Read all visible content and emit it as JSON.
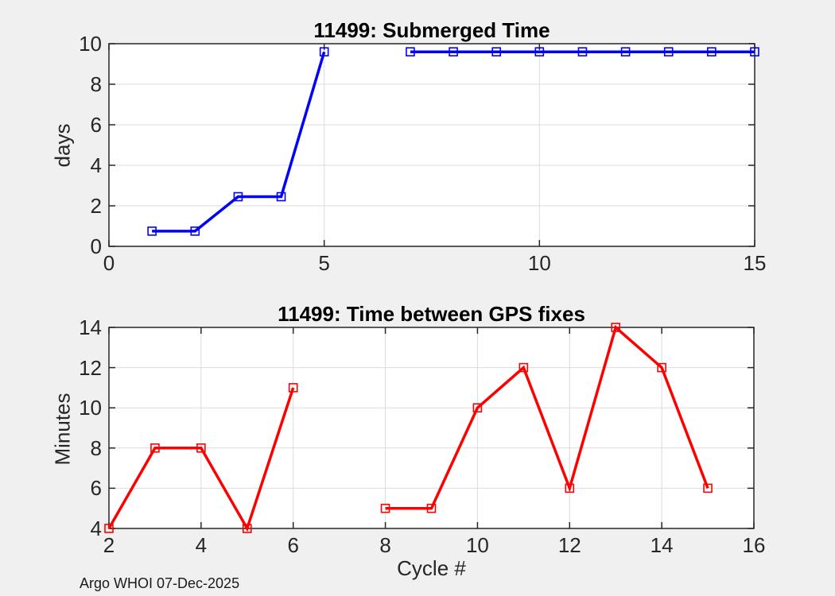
{
  "figure": {
    "background": "#F0F0F0",
    "plot_background": "#FFFFFF",
    "axis_color": "#262626",
    "grid_color": "#DBDBDB",
    "footer": "Argo WHOI 07-Dec-2025"
  },
  "chart_data": [
    {
      "type": "line",
      "title": "11499: Submerged Time",
      "ylabel": "days",
      "xlabel": "",
      "color": "#0000FF",
      "marker": "open-square",
      "grid": true,
      "legend": "none",
      "xlim": [
        0,
        15
      ],
      "ylim": [
        0,
        10
      ],
      "xticks": [
        0,
        5,
        10,
        15
      ],
      "yticks": [
        0,
        2,
        4,
        6,
        8,
        10
      ],
      "segments": [
        [
          [
            1,
            0.75
          ],
          [
            2,
            0.75
          ],
          [
            3,
            2.45
          ],
          [
            4,
            2.45
          ],
          [
            5,
            9.6
          ]
        ],
        [
          [
            7,
            9.6
          ],
          [
            8,
            9.6
          ],
          [
            9,
            9.6
          ],
          [
            10,
            9.6
          ],
          [
            11,
            9.6
          ],
          [
            12,
            9.6
          ],
          [
            13,
            9.6
          ],
          [
            14,
            9.6
          ],
          [
            15,
            9.6
          ]
        ]
      ]
    },
    {
      "type": "line",
      "title": "11499: Time between GPS fixes",
      "ylabel": "Minutes",
      "xlabel": "Cycle #",
      "color": "#FF0000",
      "marker": "open-square",
      "grid": true,
      "legend": "none",
      "xlim": [
        2,
        16
      ],
      "ylim": [
        4,
        14
      ],
      "xticks": [
        2,
        4,
        6,
        8,
        10,
        12,
        14,
        16
      ],
      "yticks": [
        4,
        6,
        8,
        10,
        12,
        14
      ],
      "segments": [
        [
          [
            2,
            4
          ],
          [
            3,
            8
          ],
          [
            4,
            8
          ],
          [
            5,
            4
          ],
          [
            6,
            11
          ]
        ],
        [
          [
            8,
            5
          ],
          [
            9,
            5
          ],
          [
            10,
            10
          ],
          [
            11,
            12
          ],
          [
            12,
            6
          ],
          [
            13,
            14
          ],
          [
            14,
            12
          ],
          [
            15,
            6
          ]
        ]
      ]
    }
  ]
}
